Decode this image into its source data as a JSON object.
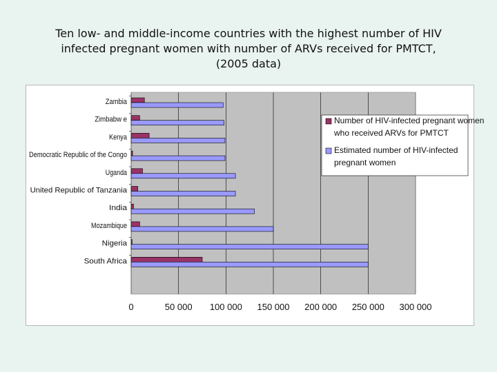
{
  "title": {
    "line1": "Ten low- and middle-income countries with the highest number of HIV",
    "line2": "infected pregnant women with number of ARVs received for PMTCT,",
    "line3": "(2005 data)"
  },
  "colors": {
    "series_received": "#993366",
    "series_estimated": "#9999ff",
    "plot_bg": "#c0c0c0",
    "page_bg": "#e9f3ef"
  },
  "chart_data": {
    "type": "bar",
    "orientation": "horizontal",
    "categories": [
      "Zambia",
      "Zimbabw e",
      "Kenya",
      "Democratic Republic of the Congo",
      "Uganda",
      "United Republic of Tanzania",
      "India",
      "Mozambique",
      "Nigeria",
      "South Africa"
    ],
    "series": [
      {
        "name": "Number of HIV-infected pregnant women who received ARVs for PMTCT",
        "legend_lines": [
          "Number of HIV-infected pregnant women",
          "who received ARVs for PMTCT"
        ],
        "color": "#993366",
        "values": [
          14000,
          9000,
          19000,
          1500,
          12000,
          7000,
          2500,
          9000,
          1000,
          75000
        ]
      },
      {
        "name": "Estimated number of HIV-infected pregnant women",
        "legend_lines": [
          "Estimated number of HIV-infected",
          "pregnant women"
        ],
        "color": "#9999ff",
        "values": [
          97000,
          98000,
          99000,
          99000,
          110000,
          110000,
          130000,
          150000,
          250000,
          250000
        ]
      }
    ],
    "xlim": [
      0,
      300000
    ],
    "xticks": [
      0,
      50000,
      100000,
      150000,
      200000,
      250000,
      300000
    ],
    "xtick_labels": [
      "0",
      "50 000",
      "100 000",
      "150 000",
      "200 000",
      "250 000",
      "300 000"
    ],
    "grid": true,
    "legend_position": "right"
  }
}
